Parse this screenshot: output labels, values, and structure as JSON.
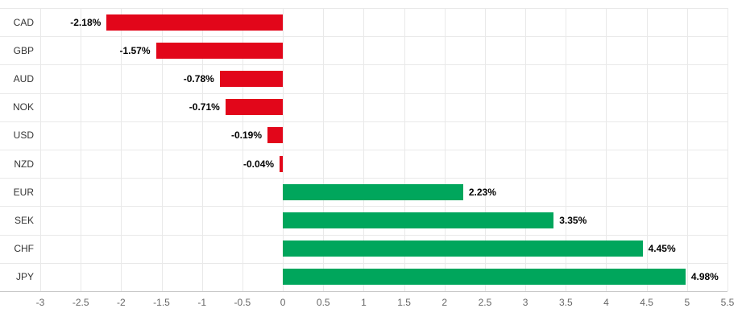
{
  "chart_data": {
    "type": "bar",
    "orientation": "horizontal",
    "title": "",
    "xlabel": "",
    "ylabel": "",
    "categories": [
      "CAD",
      "GBP",
      "AUD",
      "NOK",
      "USD",
      "NZD",
      "EUR",
      "SEK",
      "CHF",
      "JPY"
    ],
    "values": [
      -2.18,
      -1.57,
      -0.78,
      -0.71,
      -0.19,
      -0.04,
      2.23,
      3.35,
      4.45,
      4.98
    ],
    "value_labels": [
      "-2.18%",
      "-1.57%",
      "-0.78%",
      "-0.71%",
      "-0.19%",
      "-0.04%",
      "2.23%",
      "3.35%",
      "4.45%",
      "4.98%"
    ],
    "xlim": [
      -3,
      5.5
    ],
    "ticks": [
      -3,
      -2.5,
      -2,
      -1.5,
      -1,
      -0.5,
      0,
      0.5,
      1,
      1.5,
      2,
      2.5,
      3,
      3.5,
      4,
      4.5,
      5,
      5.5
    ],
    "tick_labels": [
      "-3",
      "-2.5",
      "-2",
      "-1.5",
      "-1",
      "-0.5",
      "0",
      "0.5",
      "1",
      "1.5",
      "2",
      "2.5",
      "3",
      "3.5",
      "4",
      "4.5",
      "5",
      "5.5"
    ],
    "grid": true,
    "legend": "none",
    "colors": {
      "positive": "#00a65c",
      "negative": "#e2061a",
      "grid": "#e9e9e9",
      "axis_line": "#c8c8c8",
      "tick_text": "#666666",
      "category_text": "#333333",
      "value_text": "#000000"
    }
  }
}
